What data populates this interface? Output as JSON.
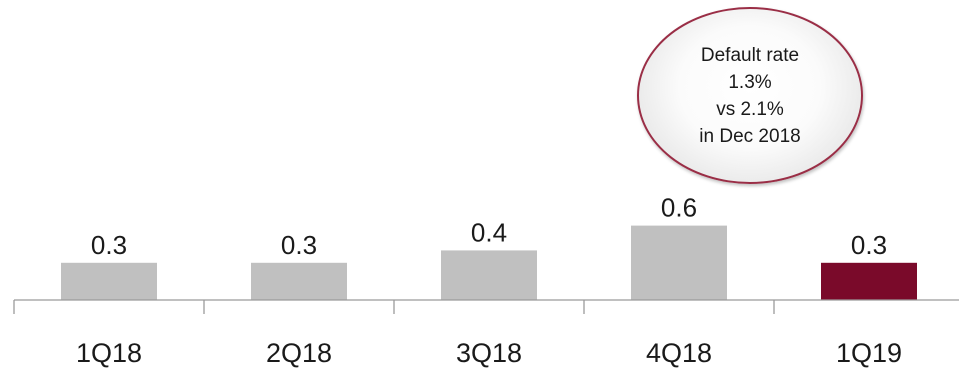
{
  "chart_data": {
    "type": "bar",
    "categories": [
      "1Q18",
      "2Q18",
      "3Q18",
      "4Q18",
      "1Q19"
    ],
    "values": [
      0.3,
      0.3,
      0.4,
      0.6,
      0.3
    ],
    "value_labels": [
      "0.3",
      "0.3",
      "0.4",
      "0.6",
      "0.3"
    ],
    "title": "",
    "xlabel": "",
    "ylabel": "",
    "ylim": [
      0,
      0.6
    ],
    "grid": false,
    "legend": "none",
    "colors": {
      "default_bar": "#c0c0c0",
      "highlight_bar": "#7a0a2a",
      "axis": "#9a9a9a",
      "callout_border": "#9a2e46"
    },
    "highlight_index": 4
  },
  "callout": {
    "lines": [
      "Default rate",
      "1.3%",
      "vs 2.1%",
      "in Dec 2018"
    ]
  }
}
